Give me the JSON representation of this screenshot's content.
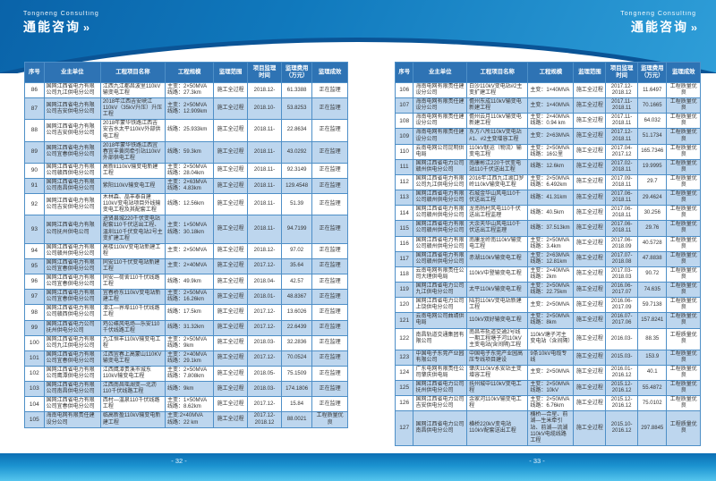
{
  "brand": {
    "en": "Tongneng Consulting",
    "zh": "通能咨询",
    "chevron": "››"
  },
  "columns": [
    "序号",
    "业主单位",
    "工程项目名称",
    "工程规模",
    "监理范围",
    "项目监理\n时间",
    "监理费用\n（万元）",
    "监理成效"
  ],
  "pages": [
    {
      "number": "- 32 -",
      "rows": [
        {
          "no": "86",
          "owner": "国网江西省电力有限公司九江供电分公司",
          "project": "江西九江都昌波里110kV输变电工程",
          "scale": "主变：2×50MVA\n线路：27.3km",
          "scope": "施工全过程",
          "period": "2018.12-",
          "fee": "61.3388",
          "result": "正在监理"
        },
        {
          "no": "87",
          "owner": "国网江西省电力有限公司吉安供电分公司",
          "project": "2018年江西吉安峡江110kV（35kV升压）升压工程",
          "scale": "主变：2×50MVA\n线路：12.909km",
          "scope": "施工全过程",
          "period": "2018.10-",
          "fee": "53.8253",
          "result": "正在监理"
        },
        {
          "no": "88",
          "owner": "国网江西省电力有限公司吉安供电分公司",
          "project": "2018年蒙华铁路江西吉安吉水太平110kV外部供电工程",
          "scale": "线路：25.933km",
          "scope": "施工全过程",
          "period": "2018.11-",
          "fee": "22.8634",
          "result": "正在监理"
        },
        {
          "no": "89",
          "owner": "国网江西省电力有限公司宜春供电分公司",
          "project": "2018年蒙华铁路江西宜春宜丰黄岗牵引站110kV外部供电工程",
          "scale": "线路：59.3km",
          "scope": "施工全过程",
          "period": "2018.11-",
          "fee": "43.0292",
          "result": "正在监理"
        },
        {
          "no": "90",
          "owner": "国网江西省电力有限公司赣西供电分公司",
          "project": "高新Ⅱ110kV输变电新建工程",
          "scale": "主变：2×50MVA\n线路：28.04km",
          "scope": "施工全过程",
          "period": "2018.11-",
          "fee": "92.3149",
          "result": "正在监理"
        },
        {
          "no": "91",
          "owner": "国网江西省电力有限公司南昌供电分公司",
          "project": "紫阳110kV输变电工程",
          "scale": "主变：2×63MVA\n线路：4.83km",
          "scope": "施工全过程",
          "period": "2018.11-",
          "fee": "129.4548",
          "result": "正在监理"
        },
        {
          "no": "92",
          "owner": "国网江西省电力有限公司吉安供电分公司",
          "project": "木林森、晶丰泰自建110kV变电站项目外线输变电工程及其配套工程",
          "scale": "线路：12.56km",
          "scope": "施工全过程",
          "period": "2018.11-",
          "fee": "51.39",
          "result": "正在监理"
        },
        {
          "no": "93",
          "owner": "国网江西省电力有限公司抚州供电公司",
          "project": "进贤县城220千伏变电站配套110千伏送出工程、温圳110千伏变电站2号主变扩建工程",
          "scale": "主变：1×50MVA\n线路：30.18km",
          "scope": "施工全过程",
          "period": "2018.11-",
          "fee": "94.7199",
          "result": "正在监理"
        },
        {
          "no": "94",
          "owner": "国网江西省电力有限公司赣州供电分公司",
          "project": "高楼110kV变电站新建工程",
          "scale": "主变：2×50MVA",
          "scope": "施工全过程",
          "period": "2018.12-",
          "fee": "97.02",
          "result": "正在监理"
        },
        {
          "no": "95",
          "owner": "国网江西省电力有限公司宜春供电分公司",
          "project": "同安110千伏变电站新建工程",
          "scale": "主变：2×40MVA",
          "scope": "施工全过程",
          "period": "2017.12-",
          "fee": "35.64",
          "result": "正在监理"
        },
        {
          "no": "96",
          "owner": "国网江西省电力有限公司宜春供电分公司",
          "project": "同安—荷舍110千伏线路工程",
          "scale": "线路：49.9km",
          "scope": "施工全过程",
          "period": "2018.04-",
          "fee": "42.57",
          "result": "正在监理"
        },
        {
          "no": "97",
          "owner": "国网江西省电力有限公司宜春供电分公司",
          "project": "宜春桥东110kV变电站新建工程",
          "scale": "主变：2×50MVA\n线路：16.26km",
          "scope": "施工全过程",
          "period": "2018.01-",
          "fee": "48.8367",
          "result": "正在监理"
        },
        {
          "no": "98",
          "owner": "国网江西省电力有限公司赣西供电分公司",
          "project": "潭江—界埠110千伏线路工程",
          "scale": "线路：17.5km",
          "scope": "施工全过程",
          "period": "2017.12-",
          "fee": "13.6026",
          "result": "正在监理"
        },
        {
          "no": "99",
          "owner": "国网江西省电力公司抚州供电分公司",
          "project": "鸡公嵊风电场—乐安110千伏线路工程",
          "scale": "线路：31.32km",
          "scope": "施工全过程",
          "period": "2017.12-",
          "fee": "22.6439",
          "result": "正在监理"
        },
        {
          "no": "100",
          "owner": "国网江西省电力有限公司九江供电分公司",
          "project": "九江恒丰110kV输变电工程",
          "scale": "主变：2×50MVA\n线路：9km",
          "scope": "施工全过程",
          "period": "2018.03-",
          "fee": "32.2836",
          "result": "正在监理"
        },
        {
          "no": "101",
          "owner": "国网江西省电力有限公司宜春供电分公司",
          "project": "江西宜春上高蒙山110KV输变电工程",
          "scale": "主变：2×40MVA\n线路：29.1km",
          "scope": "施工全过程",
          "period": "2017.12-",
          "fee": "70.0524",
          "result": "正在监理"
        },
        {
          "no": "102",
          "owner": "国网江西省电力有限公司鹰潭供电分公司",
          "project": "江西鹰潭贵溪市城东110kV输变电工程",
          "scale": "主变：2×50MVA\n线路：7.808km",
          "scope": "施工全过程",
          "period": "2018.05-",
          "fee": "75.1509",
          "result": "正在监理"
        },
        {
          "no": "103",
          "owner": "国网江西省电力有限公司南昌供电分公司",
          "project": "江西南昌瑶湖变—北沥110千伏线路工程",
          "scale": "线路：9km",
          "scope": "施工全过程",
          "period": "2018.03-",
          "fee": "174.1806",
          "result": "正在监理"
        },
        {
          "no": "104",
          "owner": "国网江西省电力有限公司宜春供电分公司",
          "project": "西村—温泉110千伏线路工程",
          "scale": "主变：1×50MVA\n线路：8.62km",
          "scope": "施工全过程",
          "period": "2017.12-",
          "fee": "15.84",
          "result": "正在监理"
        },
        {
          "no": "105",
          "owner": "海南电网有限责任建设分公司",
          "project": "临高新盈110kV输变电新建工程",
          "scale": "主变:2×40MVA\n线路：22 km",
          "scope": "施工全过程",
          "period": "2017.12-\n2018.12",
          "fee": "88.0021",
          "result": "工程质量优良"
        }
      ]
    },
    {
      "number": "- 33 -",
      "rows": [
        {
          "no": "106",
          "owner": "海南电网有限责任建设分公司",
          "project": "白沙110kV变电站#2主变扩建工程",
          "scale": "主变：1×40MVA",
          "scope": "施工全过程",
          "period": "2017.12-\n2018.12",
          "fee": "11.6497",
          "result": "工程质量优良"
        },
        {
          "no": "107",
          "owner": "海南电网有限责任建设分公司",
          "project": "儋州东成110kV输变电新建工程",
          "scale": "主变：1×40MVA",
          "scope": "施工全过程",
          "period": "2017.11-\n2018.11",
          "fee": "70.1665",
          "result": "工程质量优良"
        },
        {
          "no": "108",
          "owner": "海南电网有限责任建设分公司",
          "project": "儋州云月110kV输变电新建工程",
          "scale": "主变：2×40MVA\n线路：0.94 km",
          "scope": "施工全过程",
          "period": "2017.11-\n2018.11",
          "fee": "64.032",
          "result": "工程质量优良"
        },
        {
          "no": "109",
          "owner": "海南电网有限责任建设分公司",
          "project": "东方八所110kV变电站#1、#2主变增容工程",
          "scale": "主变：2×63MVA",
          "scope": "施工全过程",
          "period": "2017.12-\n2018.11",
          "fee": "51.1734",
          "result": "工程质量优良"
        },
        {
          "no": "110",
          "owner": "云南电网公司昆明供电局",
          "project": "110kV联运（物流）输变电工程",
          "scale": "主变：2×50MVA\n线路：16公里",
          "scope": "施工全过程",
          "period": "2017.04-\n2017.12",
          "fee": "165.7346",
          "result": "工程质量优良"
        },
        {
          "no": "111",
          "owner": "国网江西省电力公司赣州供电分公司",
          "project": "南康彬江220千伏变电站110千伏送出工程",
          "scale": "线路：12.6km",
          "scope": "施工全过程",
          "period": "2017.02-\n2018.11",
          "fee": "19.9995",
          "result": "工程质量优良"
        },
        {
          "no": "112",
          "owner": "国网江西省电力有限公司九江供电分公司",
          "project": "2016年江西九江湖口罗岭110kV输变电工程",
          "scale": "主变：2×50MVA\n线路：6.492km",
          "scope": "施工全过程",
          "period": "2017.09-\n2018.11",
          "fee": "29.7",
          "result": "工程质量优良"
        },
        {
          "no": "113",
          "owner": "国网江西省电力有限公司赣州供电分公司",
          "project": "石城金华山风电110千伏送出工程",
          "scale": "线路：41.31km",
          "scope": "施工全过程",
          "period": "2017.06-\n2018.11",
          "fee": "29.4624",
          "result": "工程质量优良"
        },
        {
          "no": "114",
          "owner": "国网江西省电力有限公司赣州供电分公司",
          "project": "龙南杨村风电110千伏送出工程监理",
          "scale": "线路：40.5km",
          "scope": "施工全过程",
          "period": "2017.06-\n2018.11",
          "fee": "30.256",
          "result": "工程质量优良"
        },
        {
          "no": "115",
          "owner": "国网江西省电力有限公司赣州供电分公司",
          "project": "大余天华山风电110千伏送出工程监理",
          "scale": "线路：37.513km",
          "scope": "施工全过程",
          "period": "2017.06-\n2018.11",
          "fee": "29.76",
          "result": "工程质量优良"
        },
        {
          "no": "116",
          "owner": "国网江西省电力有限公司赣州供电分公司",
          "project": "南康龙岭南110kV输变电工程",
          "scale": "主变：2×50MVA\n线路：3.4km",
          "scope": "施工全过程",
          "period": "2017.06-\n2018.09",
          "fee": "40.5728",
          "result": "工程质量优良"
        },
        {
          "no": "117",
          "owner": "国网江西省电力有限公司赣州供电分公司",
          "project": "赤湖110kV输变电工程",
          "scale": "主变：2×63MVA\n线路：12.81km",
          "scope": "施工全过程",
          "period": "2017.07-\n2018.08",
          "fee": "47.8838",
          "result": "工程质量优良"
        },
        {
          "no": "118",
          "owner": "云南电网有限责任公司大理供电局",
          "project": "110kV中登输变电工程",
          "scale": "主变：2×40MVA\n线路：2km",
          "scope": "施工全过程",
          "period": "2017.03-\n2018.03",
          "fee": "90.72",
          "result": "工程质量优良"
        },
        {
          "no": "119",
          "owner": "国网江西省电力公司九江供电分公司",
          "project": "太平110kV输变电工程",
          "scale": "主变：2×50MVA\n线路：22.75km",
          "scope": "施工全过程",
          "period": "2016.06-\n2017.07",
          "fee": "74.635",
          "result": "工程质量优良"
        },
        {
          "no": "120",
          "owner": "国网江西省电力公司上饶供电分公司",
          "project": "陆羽110kV变电站新建工程",
          "scale": "主变：2×50MVA",
          "scope": "施工全过程",
          "period": "2016.06-\n2017.09",
          "fee": "59.7138",
          "result": "工程质量优良"
        },
        {
          "no": "121",
          "owner": "云南电网公司曲靖供电局",
          "project": "110kV双好输变电工程",
          "scale": "主变：2×50MVA\n线路：8km",
          "scope": "施工全过程",
          "period": "2016.07-\n2017.06",
          "fee": "157.8241",
          "result": "工程质量优良"
        },
        {
          "no": "122",
          "owner": "南昌轨道交通集团有限公司",
          "project": "南昌市轨道交通2号线一期工程塘子河110kV主变电站(含间隔)工程",
          "scale": "110kV塘子河主变电站（含间隔）",
          "scope": "施工全过程",
          "period": "2016.03-",
          "fee": "88.35",
          "result": "工程质量优良"
        },
        {
          "no": "123",
          "owner": "中国电子东莞产业园有限公司",
          "project": "中国电子东莞产业园高压专线项目建设",
          "scale": "9条10kV电缆专线",
          "scope": "施工全过程",
          "period": "2015.03-",
          "fee": "153.9",
          "result": "工程质量优良"
        },
        {
          "no": "124",
          "owner": "广东电网有限责任公司肇庆供电局",
          "project": "肇庆110kV永安站主变增容工程",
          "scale": "主变：2×50MVA",
          "scope": "施工全过程",
          "period": "2016.01-\n2016.12",
          "fee": "40.1",
          "result": "工程质量优良"
        },
        {
          "no": "125",
          "owner": "国网江西省电力公司抚州供电分公司",
          "project": "抚州城中110kV变电工程",
          "scale": "主变：2×50MVA\n线路：10kV",
          "scope": "施工全过程",
          "period": "2015.12-\n2016.12",
          "fee": "55.4872",
          "result": "工程质量优良"
        },
        {
          "no": "126",
          "owner": "国网江西省电力公司吉安供电分公司",
          "project": "余家河110kV输变电工程",
          "scale": "主变：2×50MVA\n线路：6.76km",
          "scope": "施工全过程",
          "period": "2015.12-\n2016.12",
          "fee": "75.0102",
          "result": "工程质量优良"
        },
        {
          "no": "127",
          "owner": "国网江西省电力公司南昌供电分公司",
          "project": "横桥220kV变电站110kV配套送出工程",
          "scale": "横桥—合星、前湖—生米牵引站、前湖—流湖110kV电缆线路工程",
          "scope": "施工全过程",
          "period": "2015.10-\n2016.12",
          "fee": "297.8845",
          "result": "工程质量优良"
        }
      ]
    }
  ]
}
